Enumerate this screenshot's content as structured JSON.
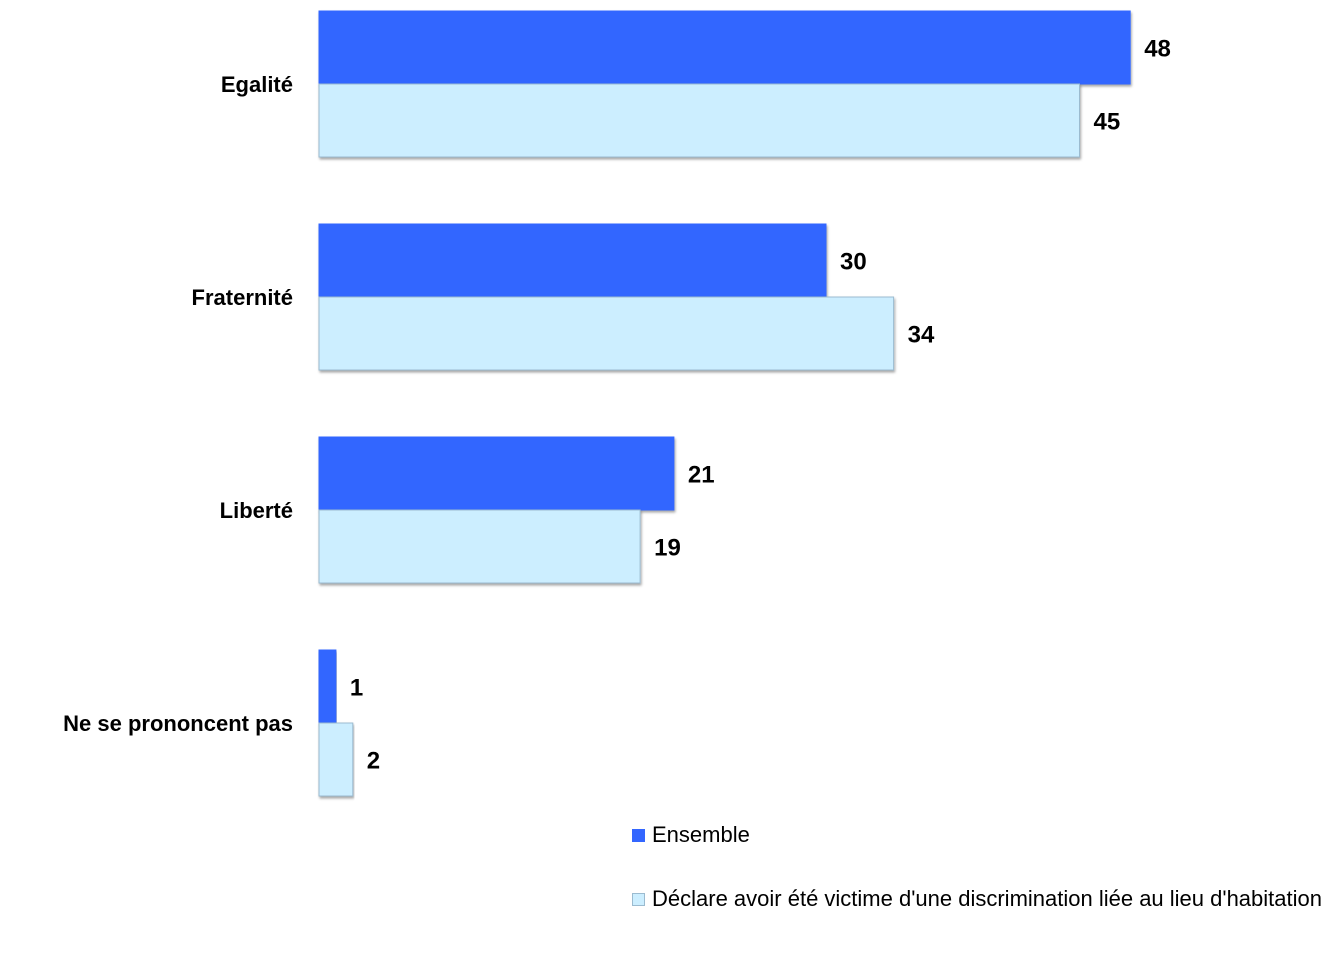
{
  "chart_data": {
    "type": "bar",
    "orientation": "horizontal",
    "categories": [
      "Egalité",
      "Fraternité",
      "Liberté",
      "Ne se prononcent pas"
    ],
    "series": [
      {
        "name": "Ensemble",
        "values": [
          48,
          30,
          21,
          1
        ],
        "color": "#3366ff"
      },
      {
        "name": "Déclare avoir été victime d'une discrimination liée au lieu d'habitation",
        "values": [
          45,
          34,
          19,
          2
        ],
        "color": "#cceeff"
      }
    ],
    "title": "",
    "xlabel": "",
    "ylabel": "",
    "xlim": [
      0,
      48
    ],
    "grid": false,
    "legend_position": "bottom-right"
  }
}
